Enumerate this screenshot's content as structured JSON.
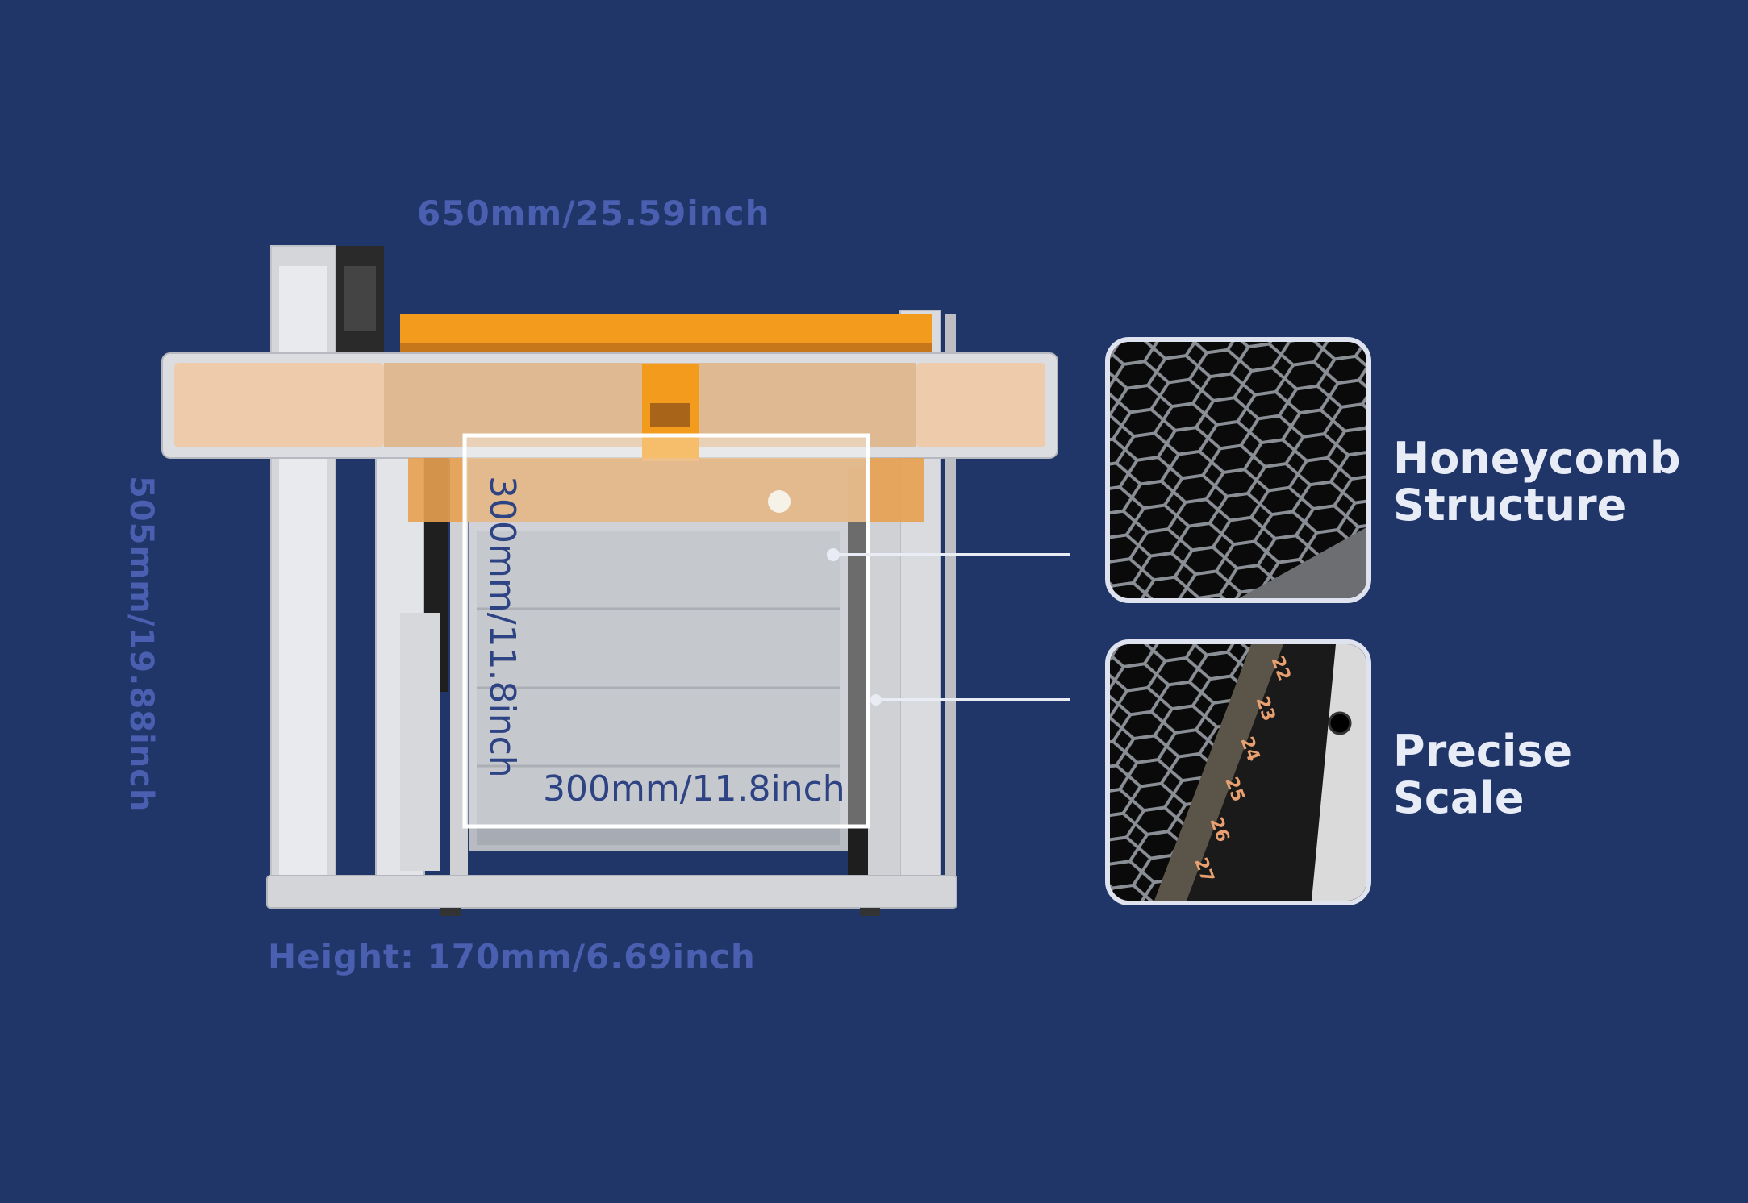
{
  "dimensions": {
    "width": "650mm/25.59inch",
    "depth": "505mm/19.88inch",
    "height": "Height: 170mm/6.69inch",
    "work_area_horizontal": "300mm/11.8inch",
    "work_area_vertical": "300mm/11.8inch"
  },
  "callouts": [
    {
      "line1": "Honeycomb",
      "line2": "Structure"
    },
    {
      "line1": "Precise",
      "line2": "Scale"
    }
  ],
  "scale_numbers": [
    "22",
    "23",
    "24",
    "25",
    "26",
    "27"
  ],
  "colors": {
    "background": "#203669",
    "accent_orange": "#f29b1c",
    "dimension_text": "#4a5fb0",
    "label_text": "#e8ecf7"
  }
}
